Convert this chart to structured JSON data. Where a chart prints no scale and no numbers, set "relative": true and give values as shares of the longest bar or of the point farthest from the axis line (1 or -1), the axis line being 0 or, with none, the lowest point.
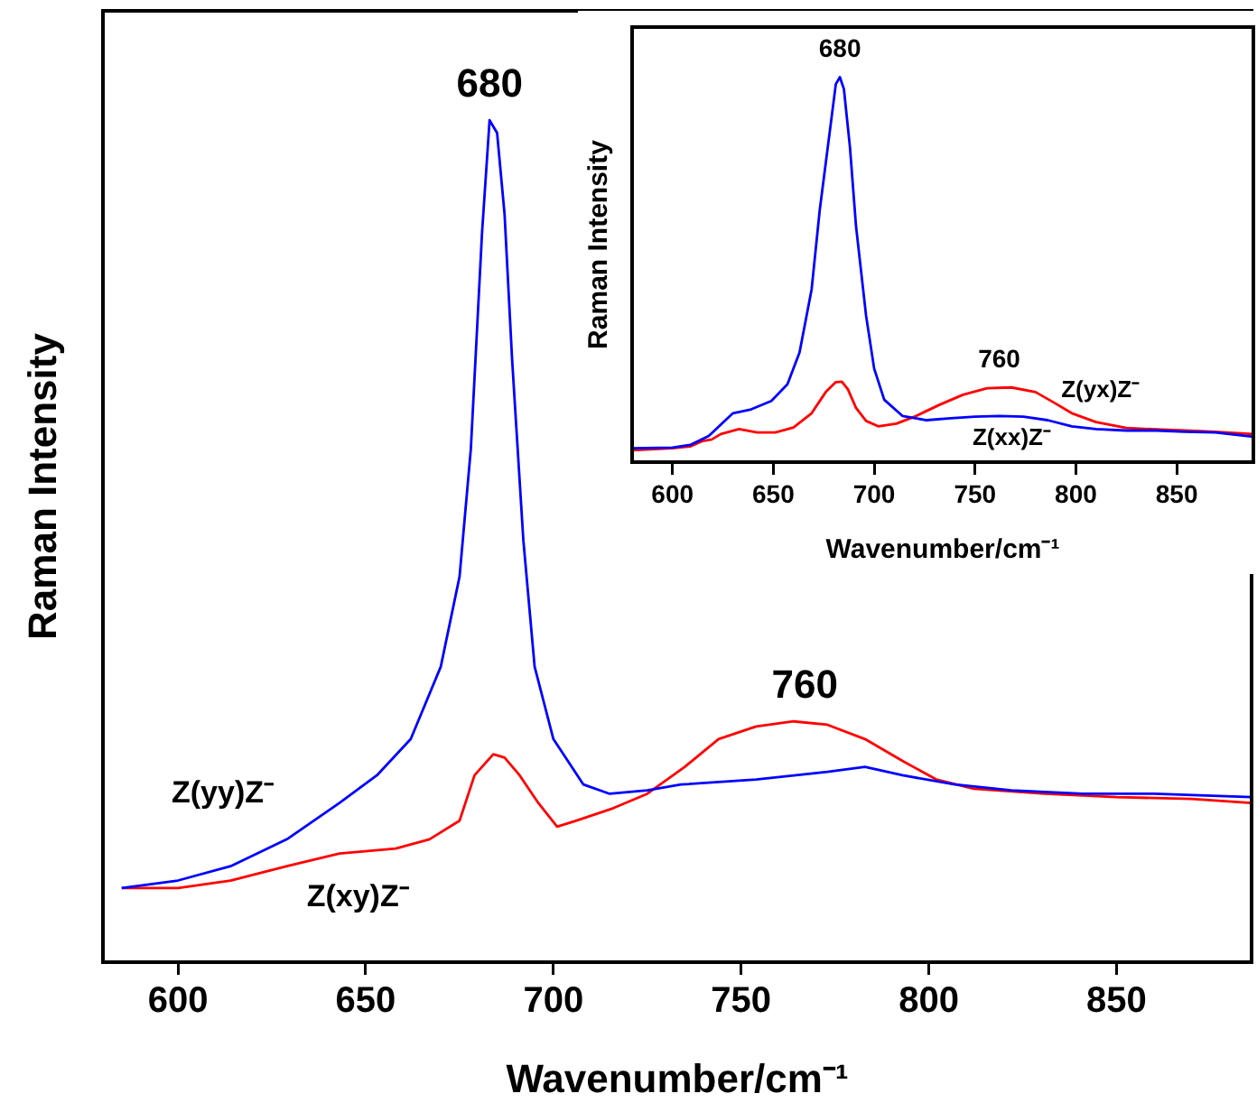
{
  "chart_data": [
    {
      "type": "line",
      "xlabel": "Wavenumber/cm⁻¹",
      "ylabel": "Raman Intensity",
      "relative": true,
      "xlim": [
        580,
        886
      ],
      "xticks": [
        600,
        650,
        700,
        750,
        800,
        850
      ],
      "tick_labels": "x",
      "legend": false,
      "marker": "none",
      "line_style": "solid",
      "annotations": [
        {
          "text": "680",
          "x": 683,
          "y": 1
        },
        {
          "text": "760",
          "x": 767,
          "y": 0.286
        }
      ],
      "series": [
        {
          "name": "Z(yy)Z⁻",
          "color": "#0000ff",
          "x": [
            585,
            600,
            614,
            629,
            643,
            653,
            662,
            670,
            675,
            678,
            681,
            683,
            685,
            687,
            689,
            692,
            695,
            700,
            708,
            715,
            725,
            734,
            754,
            773,
            783,
            793,
            807,
            822,
            841,
            860,
            886
          ],
          "values": [
            0.088,
            0.097,
            0.114,
            0.146,
            0.189,
            0.222,
            0.265,
            0.351,
            0.458,
            0.609,
            0.867,
            1,
            0.985,
            0.888,
            0.716,
            0.501,
            0.351,
            0.265,
            0.211,
            0.2,
            0.204,
            0.211,
            0.217,
            0.226,
            0.232,
            0.222,
            0.211,
            0.204,
            0.2,
            0.2,
            0.196
          ]
        },
        {
          "name": "Z(xy)Z⁻",
          "color": "#ff0000",
          "x": [
            585,
            600,
            614,
            629,
            643,
            658,
            667,
            675,
            679,
            684,
            687,
            691,
            696,
            701,
            706,
            716,
            725,
            735,
            744,
            754,
            764,
            773,
            783,
            793,
            802,
            812,
            831,
            850,
            870,
            886
          ],
          "values": [
            0.088,
            0.088,
            0.097,
            0.114,
            0.129,
            0.135,
            0.146,
            0.168,
            0.222,
            0.247,
            0.243,
            0.222,
            0.189,
            0.161,
            0.168,
            0.183,
            0.2,
            0.232,
            0.265,
            0.28,
            0.286,
            0.282,
            0.265,
            0.239,
            0.217,
            0.206,
            0.2,
            0.196,
            0.194,
            0.189
          ]
        }
      ]
    },
    {
      "type": "line",
      "xlabel": "Wavenumber/cm⁻¹",
      "ylabel": "Raman Intensity",
      "relative": true,
      "xlim": [
        580,
        888
      ],
      "xticks": [
        600,
        650,
        700,
        750,
        800,
        850
      ],
      "tick_labels": "x",
      "legend": false,
      "marker": "none",
      "line_style": "solid",
      "annotations": [
        {
          "text": "680",
          "x": 683,
          "y": 1
        },
        {
          "text": "760",
          "x": 762,
          "y": 0.194
        }
      ],
      "series": [
        {
          "name": "Z(xx)Z⁻",
          "color": "#0000ff",
          "x": [
            580,
            600,
            609,
            618,
            630,
            639,
            649,
            657,
            663,
            669,
            673,
            678,
            681,
            683,
            685,
            688,
            691,
            696,
            700,
            705,
            714,
            726,
            738,
            750,
            762,
            774,
            786,
            798,
            810,
            825,
            840,
            854,
            869,
            888
          ],
          "values": [
            0.036,
            0.038,
            0.045,
            0.068,
            0.127,
            0.137,
            0.159,
            0.202,
            0.285,
            0.449,
            0.654,
            0.859,
            0.982,
            1,
            0.969,
            0.818,
            0.613,
            0.38,
            0.243,
            0.162,
            0.12,
            0.109,
            0.114,
            0.118,
            0.12,
            0.118,
            0.109,
            0.093,
            0.086,
            0.082,
            0.082,
            0.079,
            0.077,
            0.066
          ]
        },
        {
          "name": "Z(yx)Z⁻",
          "color": "#ff0000",
          "x": [
            580,
            600,
            609,
            615,
            619.5,
            624,
            633,
            642,
            651,
            660,
            669,
            676,
            681,
            684,
            687,
            691,
            696,
            702,
            711,
            720,
            732,
            744,
            756,
            768,
            780,
            789,
            798,
            810,
            825,
            840,
            854,
            869,
            888
          ],
          "values": [
            0.031,
            0.036,
            0.041,
            0.055,
            0.059,
            0.073,
            0.086,
            0.077,
            0.077,
            0.09,
            0.127,
            0.182,
            0.208,
            0.209,
            0.189,
            0.141,
            0.107,
            0.093,
            0.1,
            0.118,
            0.148,
            0.175,
            0.192,
            0.194,
            0.182,
            0.155,
            0.127,
            0.104,
            0.089,
            0.085,
            0.082,
            0.079,
            0.073
          ]
        }
      ]
    }
  ]
}
